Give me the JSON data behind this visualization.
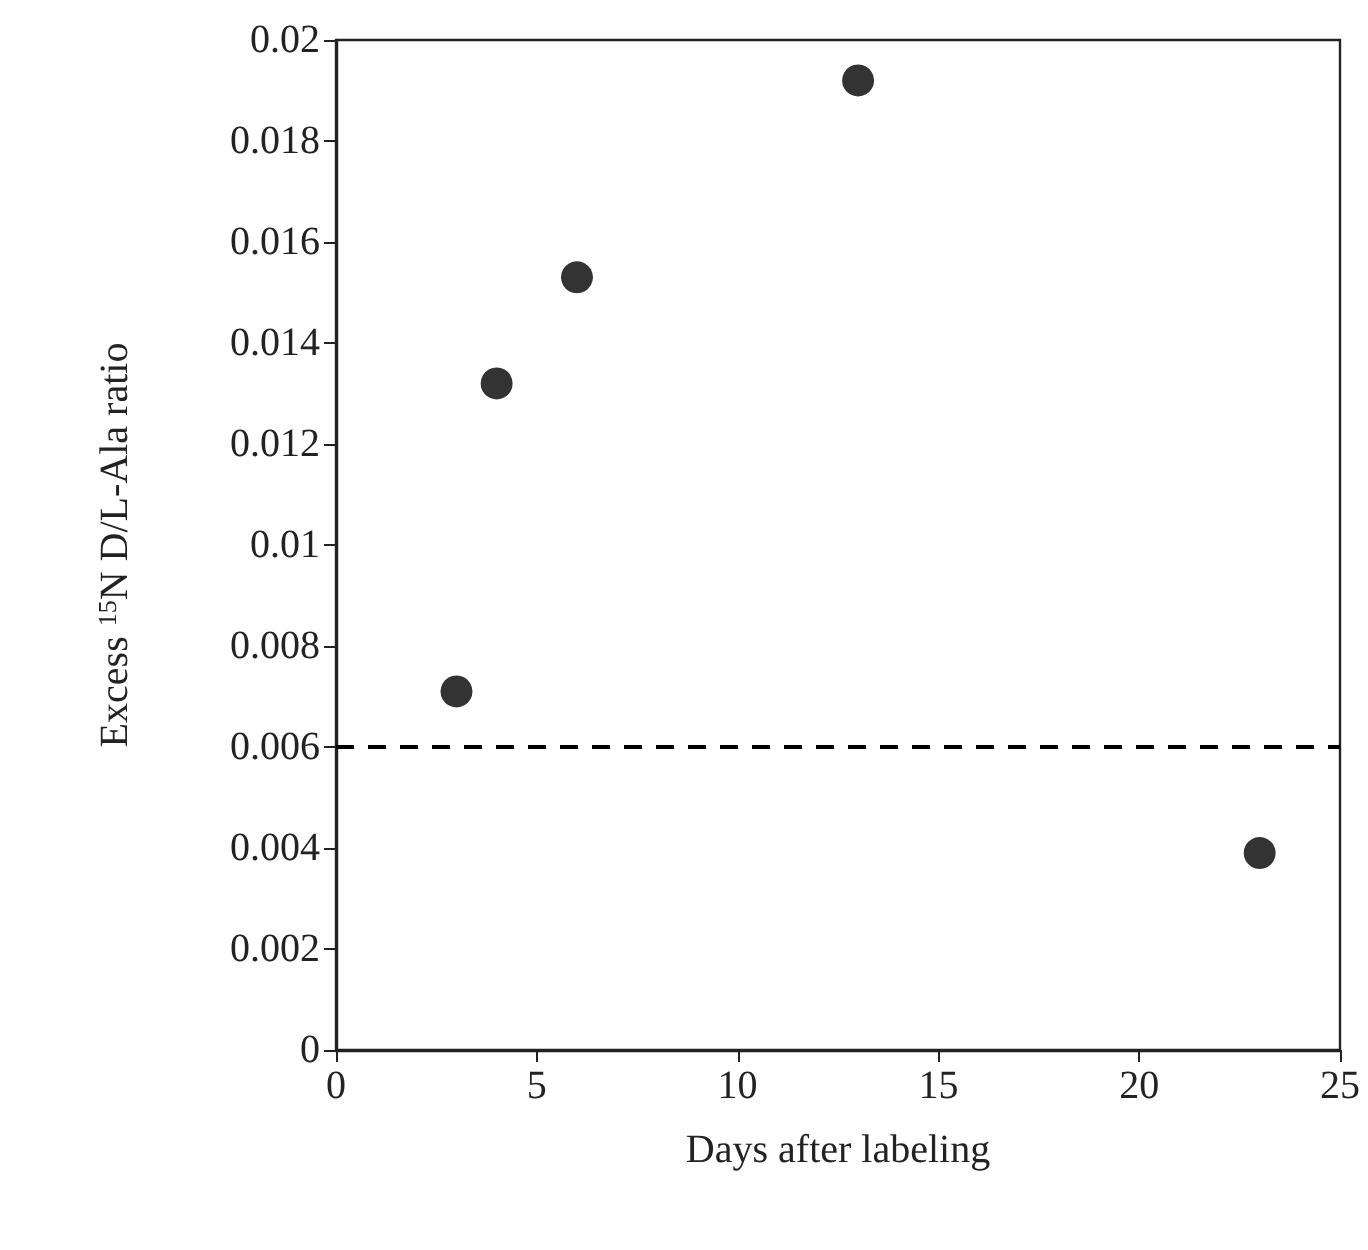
{
  "chart_data": {
    "type": "scatter",
    "xlabel": "Days after labeling",
    "ylabel": "Excess $^{15}$N D/L-Ala ratio",
    "x": [
      3,
      4,
      6,
      13,
      23
    ],
    "values": [
      0.0071,
      0.0132,
      0.0153,
      0.0192,
      0.0039
    ],
    "color": "#000000",
    "marker": "circle",
    "xlim": [
      0,
      25
    ],
    "xticks": [
      0,
      5,
      10,
      15,
      20,
      25
    ],
    "ylim": [
      0,
      0.02
    ],
    "yticks": [
      0,
      0.002,
      0.004,
      0.006,
      0.008,
      0.01,
      0.012,
      0.014,
      0.016,
      0.018,
      0.02
    ],
    "ref_lines": [
      {
        "axis": "y",
        "value": 0.006,
        "line_style": "dashed",
        "color": "#000000"
      }
    ],
    "grid": false
  }
}
